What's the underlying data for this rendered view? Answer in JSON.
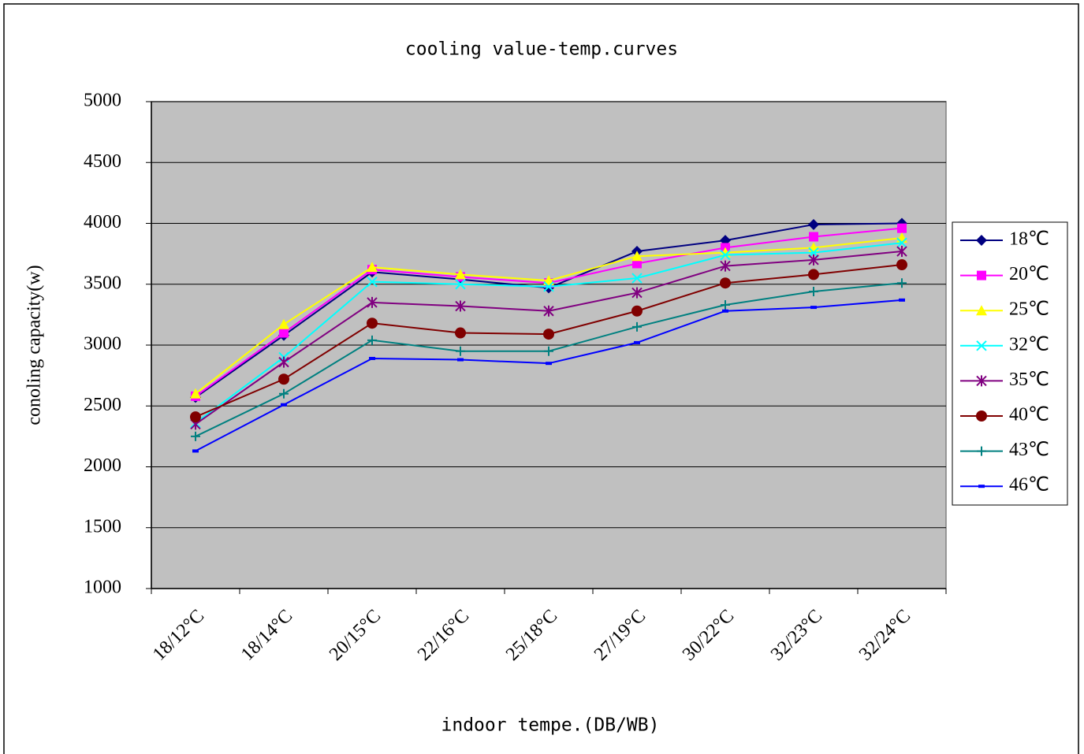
{
  "chart_data": {
    "type": "line",
    "title": "cooling value-temp.curves",
    "x_label": "indoor tempe.(DB/WB)",
    "y_label": "conoling capacity(w)",
    "categories": [
      "18/12°C",
      "18/14°C",
      "20/15°C",
      "22/16°C",
      "25/18°C",
      "27/19°C",
      "30/22°C",
      "32/23°C",
      "32/24°C"
    ],
    "ylim": [
      1000,
      5000
    ],
    "yticks": [
      1000,
      1500,
      2000,
      2500,
      3000,
      3500,
      4000,
      4500,
      5000
    ],
    "grid": true,
    "legend": "right",
    "series": [
      {
        "name": "18℃",
        "color": "#000080",
        "marker": "diamond",
        "values": [
          2570,
          3080,
          3600,
          3540,
          3470,
          3770,
          3860,
          3990,
          4000
        ]
      },
      {
        "name": "20℃",
        "color": "#ff00ff",
        "marker": "square",
        "values": [
          2580,
          3100,
          3620,
          3560,
          3510,
          3670,
          3800,
          3890,
          3960
        ]
      },
      {
        "name": "25℃",
        "color": "#ffff00",
        "marker": "triangle",
        "values": [
          2600,
          3170,
          3640,
          3580,
          3530,
          3730,
          3760,
          3800,
          3880
        ]
      },
      {
        "name": "32℃",
        "color": "#00ffff",
        "marker": "x",
        "values": [
          2360,
          2900,
          3520,
          3500,
          3480,
          3550,
          3740,
          3760,
          3840
        ]
      },
      {
        "name": "35℃",
        "color": "#800080",
        "marker": "asterisk",
        "values": [
          2350,
          2860,
          3350,
          3320,
          3280,
          3430,
          3650,
          3700,
          3770
        ]
      },
      {
        "name": "40℃",
        "color": "#800000",
        "marker": "circle",
        "values": [
          2410,
          2720,
          3180,
          3100,
          3090,
          3280,
          3510,
          3580,
          3660
        ]
      },
      {
        "name": "43℃",
        "color": "#008080",
        "marker": "plus",
        "values": [
          2250,
          2600,
          3040,
          2950,
          2950,
          3150,
          3330,
          3440,
          3510
        ]
      },
      {
        "name": "46℃",
        "color": "#0000ff",
        "marker": "dash",
        "values": [
          2130,
          2510,
          2890,
          2880,
          2850,
          3020,
          3280,
          3310,
          3370
        ]
      }
    ]
  }
}
